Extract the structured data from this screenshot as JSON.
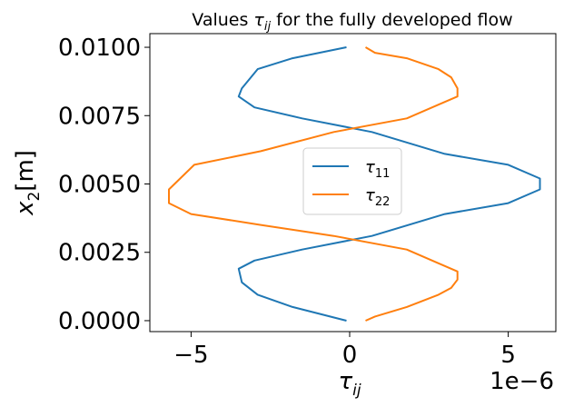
{
  "chart_data": {
    "type": "line",
    "title": "Values τ_ij for the fully developed flow",
    "xlabel": "τ_ij",
    "ylabel": "x_2[m]",
    "x_offset_label": "1e−6",
    "x_scale": 1e-06,
    "xlim": [
      -6.3,
      6.5
    ],
    "ylim": [
      -0.0004,
      0.0105
    ],
    "x_ticks": [
      -5,
      0,
      5
    ],
    "x_tick_labels": [
      "−5",
      "0",
      "5"
    ],
    "y_ticks": [
      0.0,
      0.0025,
      0.005,
      0.0075,
      0.01
    ],
    "y_tick_labels": [
      "0.0000",
      "0.0025",
      "0.0050",
      "0.0075",
      "0.0100"
    ],
    "grid": false,
    "legend_position": "center",
    "series": [
      {
        "name": "τ_11",
        "color": "#1f77b4",
        "x": [
          -0.1,
          -1.8,
          -2.9,
          -3.4,
          -3.5,
          -3.0,
          -1.5,
          0.7,
          3.0,
          5.0,
          6.0,
          6.0,
          5.0,
          3.0,
          0.7,
          -1.5,
          -3.0,
          -3.5,
          -3.4,
          -2.9,
          -1.8,
          -0.1
        ],
        "y": [
          0.0,
          0.0005,
          0.00095,
          0.0014,
          0.0019,
          0.0022,
          0.0026,
          0.0031,
          0.0039,
          0.0043,
          0.0048,
          0.0052,
          0.0057,
          0.0061,
          0.0069,
          0.0074,
          0.0078,
          0.0082,
          0.0085,
          0.0092,
          0.0096,
          0.01
        ]
      },
      {
        "name": "τ_22",
        "color": "#ff7f0e",
        "x": [
          0.5,
          0.8,
          1.8,
          2.8,
          3.2,
          3.4,
          3.4,
          2.8,
          1.8,
          -0.5,
          -2.8,
          -5.0,
          -5.7,
          -5.7,
          -4.9,
          -2.8,
          -0.5,
          1.8,
          2.8,
          3.4,
          3.4,
          3.2,
          2.8,
          1.8,
          0.8,
          0.5
        ],
        "y": [
          0.0,
          0.00015,
          0.0005,
          0.00095,
          0.0012,
          0.0015,
          0.0018,
          0.0021,
          0.0026,
          0.0031,
          0.0035,
          0.0039,
          0.0043,
          0.0048,
          0.0057,
          0.0062,
          0.0069,
          0.0074,
          0.0079,
          0.0082,
          0.0085,
          0.0089,
          0.0092,
          0.0096,
          0.0098,
          0.01
        ]
      }
    ]
  }
}
